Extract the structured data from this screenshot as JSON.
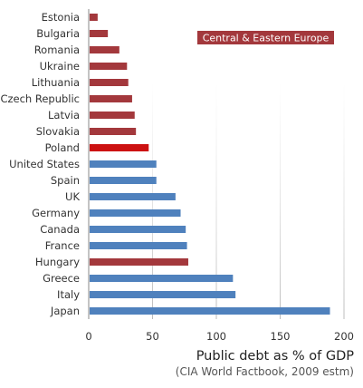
{
  "chart_data": {
    "type": "bar",
    "orientation": "horizontal",
    "categories": [
      "Estonia",
      "Bulgaria",
      "Romania",
      "Ukraine",
      "Lithuania",
      "Czech Republic",
      "Latvia",
      "Slovakia",
      "Poland",
      "United States",
      "Spain",
      "UK",
      "Germany",
      "Canada",
      "France",
      "Hungary",
      "Greece",
      "Italy",
      "Japan"
    ],
    "values": [
      7,
      15,
      24,
      30,
      31,
      34,
      36,
      37,
      47,
      53,
      53,
      68,
      72,
      76,
      77,
      78,
      113,
      115,
      189
    ],
    "groups": [
      "cee",
      "cee",
      "cee",
      "cee",
      "cee",
      "cee",
      "cee",
      "cee",
      "poland",
      "other",
      "other",
      "other",
      "other",
      "other",
      "other",
      "cee",
      "other",
      "other",
      "other"
    ],
    "colors": {
      "cee": "#a3383c",
      "poland": "#cc1111",
      "other": "#4f81bd"
    },
    "xlabel": "Public debt as % of GDP",
    "subtitle": "(CIA World Factbook, 2009 estm)",
    "legend_label": "Central & Eastern Europe",
    "legend_placement": "top-right",
    "xlim": [
      0,
      200
    ],
    "xticks": [
      0,
      50,
      100,
      150,
      200
    ],
    "grid": false
  }
}
